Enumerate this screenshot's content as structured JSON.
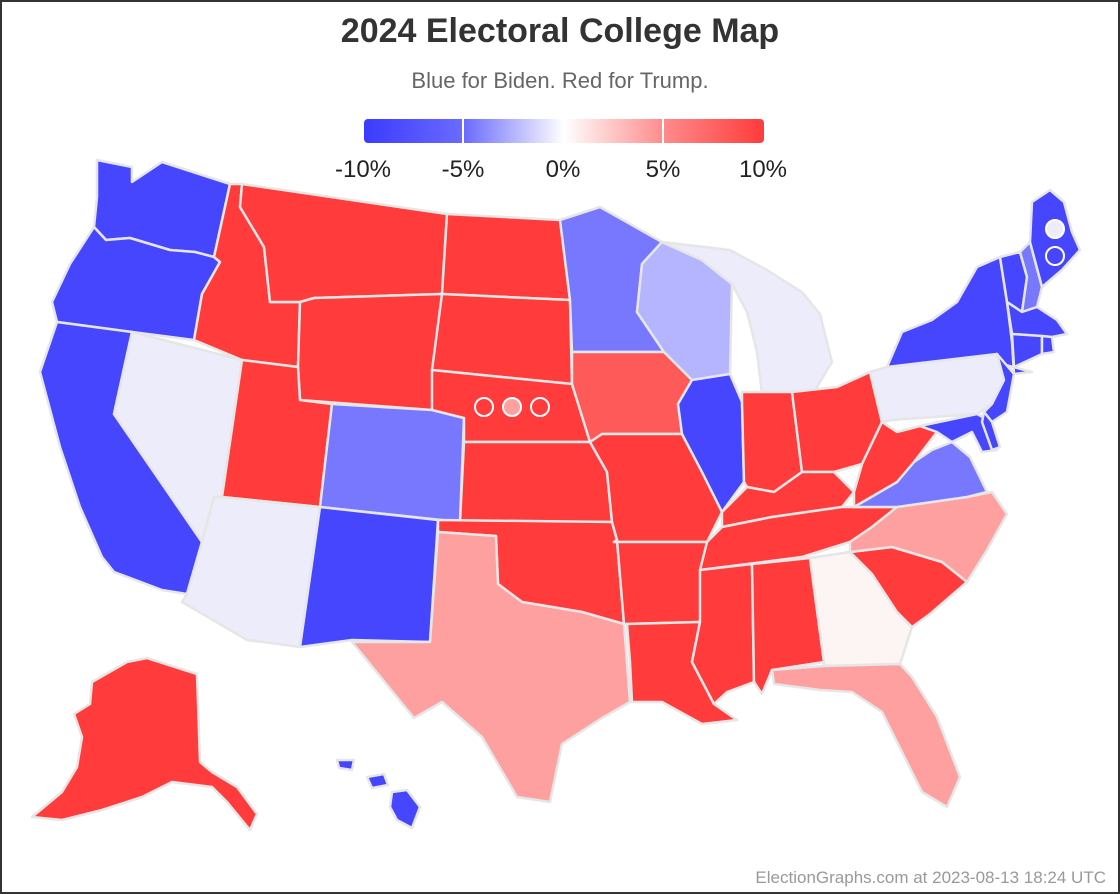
{
  "title": "2024 Electoral College Map",
  "subtitle": "Blue for Biden. Red for Trump.",
  "legend": {
    "labels": [
      "-10%",
      "-5%",
      "0%",
      "5%",
      "10%"
    ],
    "colors": [
      "#3b3bff",
      "#6b6bff",
      "#ffffff",
      "#ff8a8a",
      "#ff3b3b"
    ]
  },
  "footer": "ElectionGraphs.com at 2023-08-13 18:24 UTC",
  "state_colors": {
    "solid_biden": "#4646ff",
    "lean_biden": "#7878ff",
    "weak_biden": "#b4b4ff",
    "tossup_biden": "#ececfb",
    "tossup_trump": "#fdf4f4",
    "weak_trump": "#ffa0a0",
    "lean_trump": "#ff5a5a",
    "solid_trump": "#ff3b3b"
  },
  "states": [
    {
      "id": "WA",
      "tier": "solid_biden"
    },
    {
      "id": "OR",
      "tier": "solid_biden"
    },
    {
      "id": "CA",
      "tier": "solid_biden"
    },
    {
      "id": "NV",
      "tier": "tossup_biden"
    },
    {
      "id": "ID",
      "tier": "solid_trump"
    },
    {
      "id": "MT",
      "tier": "solid_trump"
    },
    {
      "id": "WY",
      "tier": "solid_trump"
    },
    {
      "id": "UT",
      "tier": "solid_trump"
    },
    {
      "id": "AZ",
      "tier": "tossup_biden"
    },
    {
      "id": "CO",
      "tier": "lean_biden"
    },
    {
      "id": "NM",
      "tier": "solid_biden"
    },
    {
      "id": "ND",
      "tier": "solid_trump"
    },
    {
      "id": "SD",
      "tier": "solid_trump"
    },
    {
      "id": "NE",
      "tier": "solid_trump"
    },
    {
      "id": "KS",
      "tier": "solid_trump"
    },
    {
      "id": "OK",
      "tier": "solid_trump"
    },
    {
      "id": "TX",
      "tier": "weak_trump"
    },
    {
      "id": "MN",
      "tier": "lean_biden"
    },
    {
      "id": "IA",
      "tier": "lean_trump"
    },
    {
      "id": "MO",
      "tier": "solid_trump"
    },
    {
      "id": "AR",
      "tier": "solid_trump"
    },
    {
      "id": "LA",
      "tier": "solid_trump"
    },
    {
      "id": "WI",
      "tier": "weak_biden"
    },
    {
      "id": "IL",
      "tier": "solid_biden"
    },
    {
      "id": "MI",
      "tier": "tossup_biden"
    },
    {
      "id": "IN",
      "tier": "solid_trump"
    },
    {
      "id": "OH",
      "tier": "solid_trump"
    },
    {
      "id": "KY",
      "tier": "solid_trump"
    },
    {
      "id": "TN",
      "tier": "solid_trump"
    },
    {
      "id": "MS",
      "tier": "solid_trump"
    },
    {
      "id": "AL",
      "tier": "solid_trump"
    },
    {
      "id": "GA",
      "tier": "tossup_trump"
    },
    {
      "id": "FL",
      "tier": "weak_trump"
    },
    {
      "id": "SC",
      "tier": "solid_trump"
    },
    {
      "id": "NC",
      "tier": "weak_trump"
    },
    {
      "id": "VA",
      "tier": "lean_biden"
    },
    {
      "id": "WV",
      "tier": "solid_trump"
    },
    {
      "id": "PA",
      "tier": "tossup_biden"
    },
    {
      "id": "NY",
      "tier": "solid_biden"
    },
    {
      "id": "NJ",
      "tier": "solid_biden"
    },
    {
      "id": "MD",
      "tier": "solid_biden"
    },
    {
      "id": "DE",
      "tier": "solid_biden"
    },
    {
      "id": "VT",
      "tier": "solid_biden"
    },
    {
      "id": "NH",
      "tier": "lean_biden"
    },
    {
      "id": "ME",
      "tier": "solid_biden"
    },
    {
      "id": "MA",
      "tier": "solid_biden"
    },
    {
      "id": "CT",
      "tier": "solid_biden"
    },
    {
      "id": "RI",
      "tier": "solid_biden"
    },
    {
      "id": "AK",
      "tier": "solid_trump"
    },
    {
      "id": "HI",
      "tier": "solid_biden"
    }
  ],
  "districts": [
    {
      "id": "NE-1",
      "tier": "solid_trump"
    },
    {
      "id": "NE-2",
      "tier": "weak_trump"
    },
    {
      "id": "NE-3",
      "tier": "solid_trump"
    },
    {
      "id": "ME-1",
      "tier": "tossup_biden"
    },
    {
      "id": "ME-2",
      "tier": "solid_biden"
    }
  ]
}
